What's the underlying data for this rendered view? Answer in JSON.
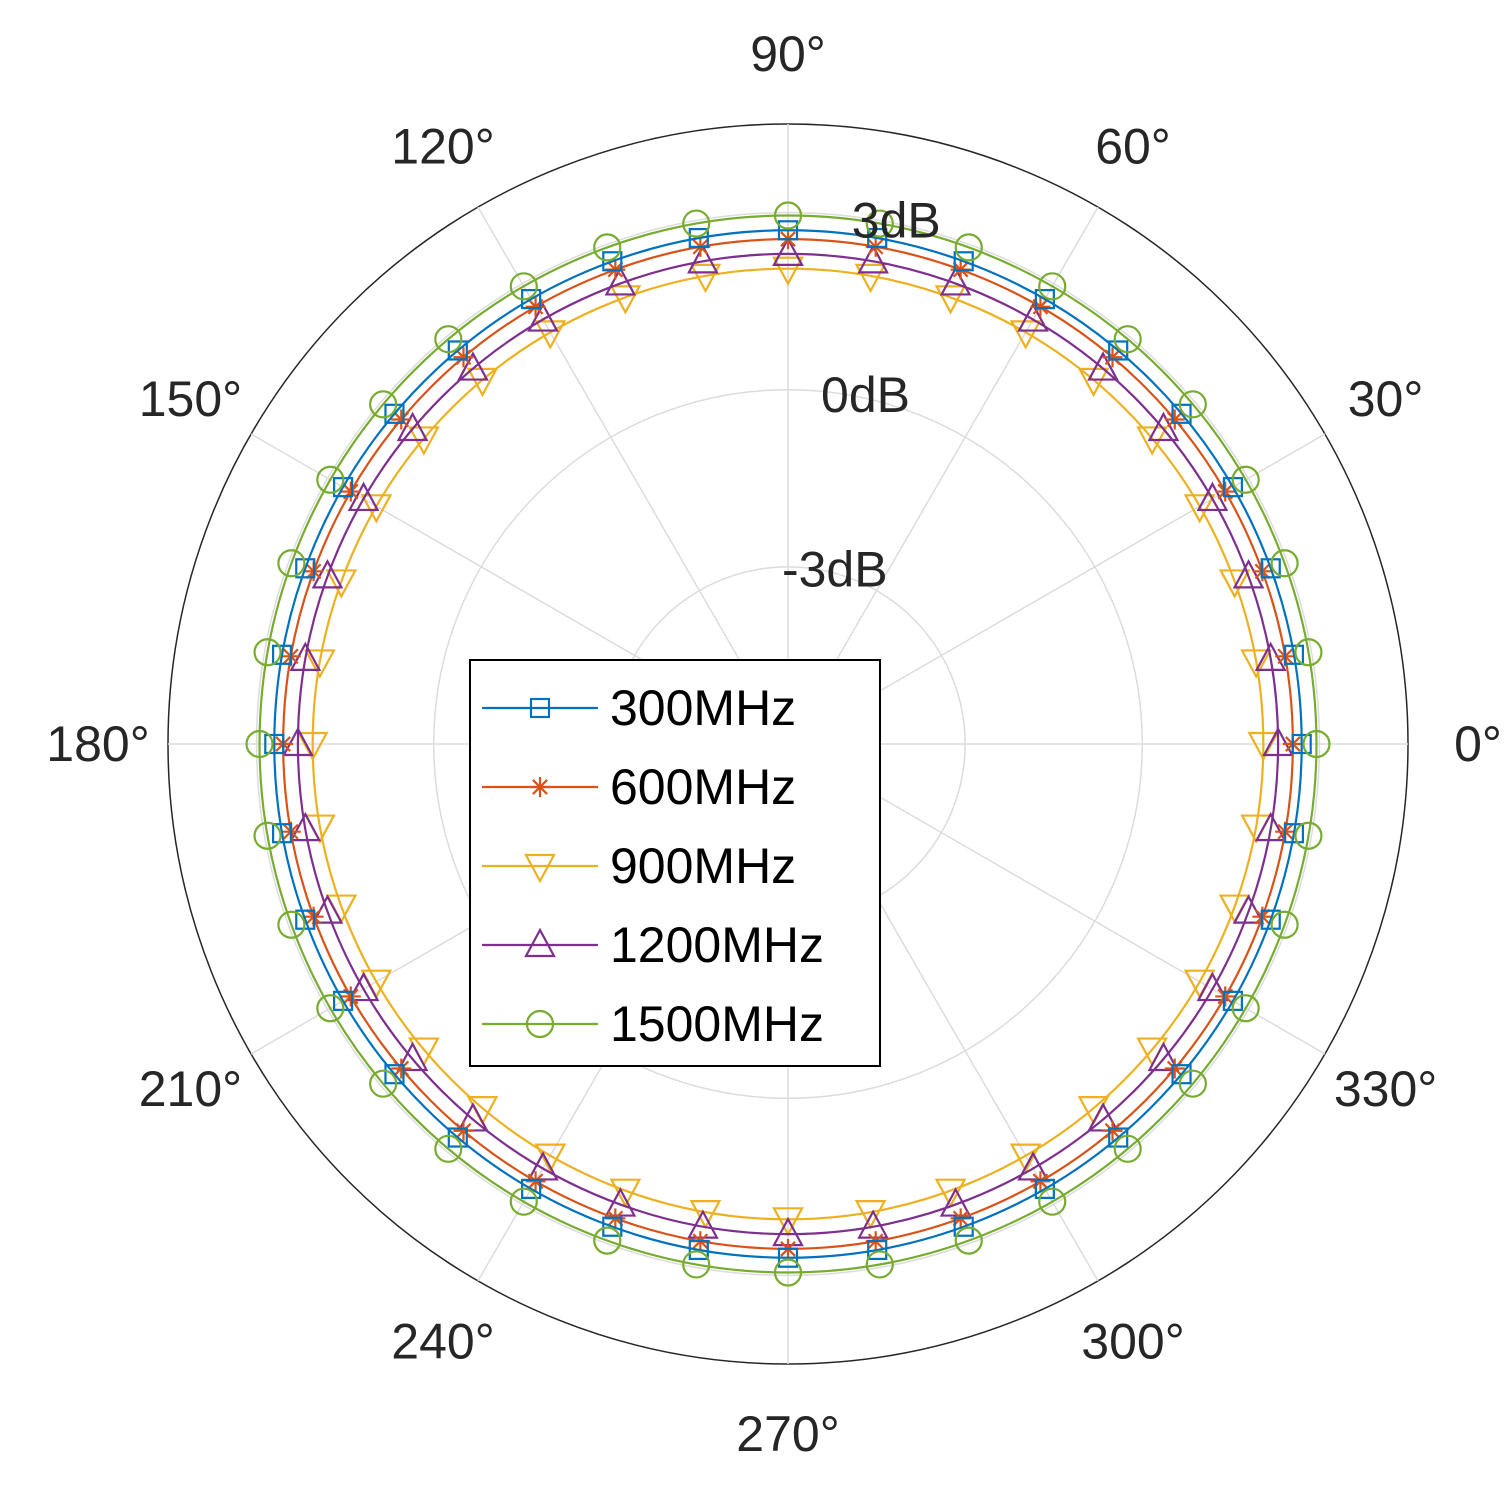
{
  "chart_data": {
    "type": "polar-line",
    "r_ticks": [
      {
        "value": -3,
        "label": "-3dB"
      },
      {
        "value": 0,
        "label": "0dB"
      },
      {
        "value": 3,
        "label": "3dB"
      }
    ],
    "r_range": [
      -6,
      4.5
    ],
    "theta_ticks": [
      {
        "value": 0,
        "label": "0°"
      },
      {
        "value": 30,
        "label": "30°"
      },
      {
        "value": 60,
        "label": "60°"
      },
      {
        "value": 90,
        "label": "90°"
      },
      {
        "value": 120,
        "label": "120°"
      },
      {
        "value": 150,
        "label": "150°"
      },
      {
        "value": 180,
        "label": "180°"
      },
      {
        "value": 210,
        "label": "210°"
      },
      {
        "value": 240,
        "label": "240°"
      },
      {
        "value": 270,
        "label": "270°"
      },
      {
        "value": 300,
        "label": "300°"
      },
      {
        "value": 330,
        "label": "330°"
      }
    ],
    "theta_step": 10,
    "grid": true,
    "legend_position": "center",
    "series": [
      {
        "name": "300MHz",
        "color": "#0072BD",
        "marker": "square",
        "value_db": 2.7
      },
      {
        "name": "600MHz",
        "color": "#D95319",
        "marker": "asterisk",
        "value_db": 2.55
      },
      {
        "name": "900MHz",
        "color": "#EDB120",
        "marker": "triangle-down",
        "value_db": 2.05
      },
      {
        "name": "1200MHz",
        "color": "#7E2F8E",
        "marker": "triangle-up",
        "value_db": 2.3
      },
      {
        "name": "1500MHz",
        "color": "#77AC30",
        "marker": "circle",
        "value_db": 2.95
      }
    ]
  }
}
